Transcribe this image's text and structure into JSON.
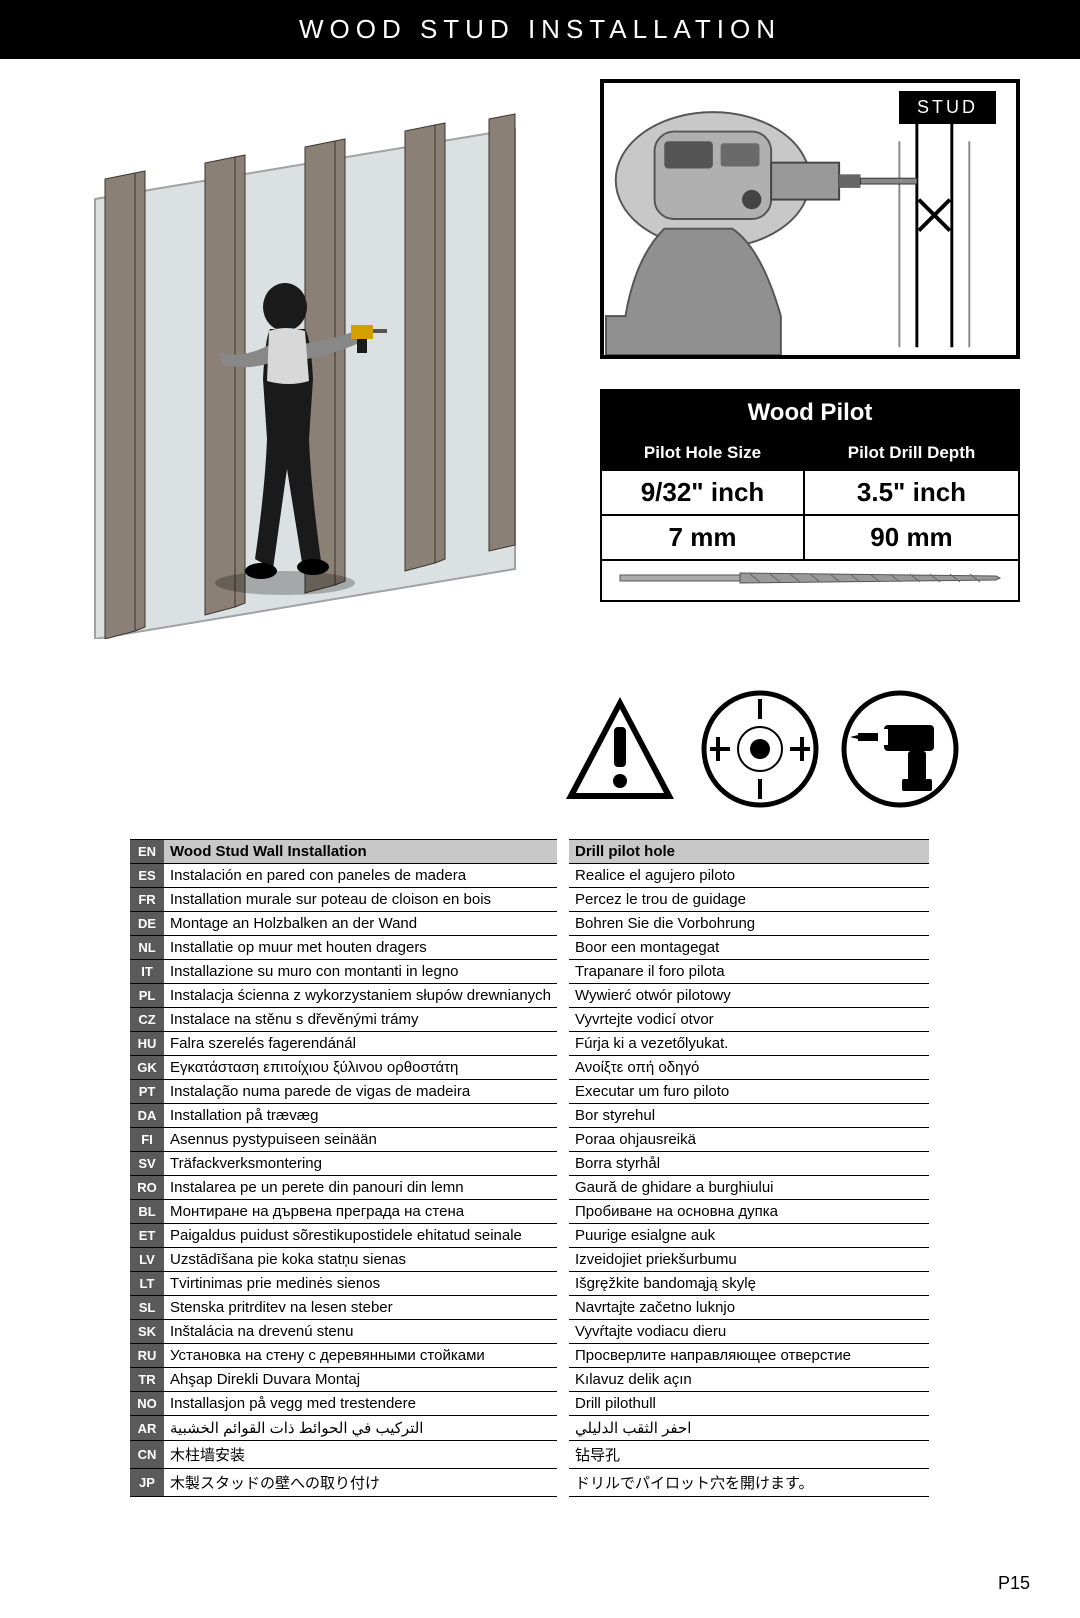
{
  "header_title": "WOOD STUD INSTALLATION",
  "stud_label": "STUD",
  "page_number": "P15",
  "pilot_table": {
    "title": "Wood Pilot",
    "col1_header": "Pilot Hole Size",
    "col2_header": "Pilot Drill Depth",
    "size_inch": "9/32\" inch",
    "depth_inch": "3.5\" inch",
    "size_mm": "7 mm",
    "depth_mm": "90 mm"
  },
  "langs": [
    {
      "code": "EN",
      "c1": "Wood Stud Wall Installation",
      "c2": "Drill pilot hole",
      "hdr": true
    },
    {
      "code": "ES",
      "c1": "Instalación en pared con paneles de madera",
      "c2": "Realice el agujero piloto"
    },
    {
      "code": "FR",
      "c1": "Installation murale sur poteau de cloison en bois",
      "c2": "Percez le trou de guidage"
    },
    {
      "code": "DE",
      "c1": "Montage an Holzbalken an der Wand",
      "c2": "Bohren Sie die Vorbohrung"
    },
    {
      "code": "NL",
      "c1": "Installatie op muur met houten dragers",
      "c2": "Boor een montagegat"
    },
    {
      "code": "IT",
      "c1": "Installazione su muro con montanti in legno",
      "c2": "Trapanare il foro pilota"
    },
    {
      "code": "PL",
      "c1": "Instalacja ścienna z wykorzystaniem słupów drewnianych",
      "c2": "Wywierć otwór pilotowy"
    },
    {
      "code": "CZ",
      "c1": "Instalace na stěnu s dřevěnými trámy",
      "c2": "Vyvrtejte vodicí otvor"
    },
    {
      "code": "HU",
      "c1": "Falra szerelés fagerendánál",
      "c2": "Fúrja ki a vezetőlyukat."
    },
    {
      "code": "GK",
      "c1": "Εγκατάσταση επιτοίχιου ξύλινου ορθοστάτη",
      "c2": "Ανοίξτε οπή οδηγό"
    },
    {
      "code": "PT",
      "c1": "Instalação numa parede de vigas de madeira",
      "c2": "Executar um furo piloto"
    },
    {
      "code": "DA",
      "c1": "Installation på trævæg",
      "c2": "Bor styrehul"
    },
    {
      "code": "FI",
      "c1": "Asennus pystypuiseen seinään",
      "c2": "Poraa ohjausreikä"
    },
    {
      "code": "SV",
      "c1": "Träfackverksmontering",
      "c2": "Borra styrhål"
    },
    {
      "code": "RO",
      "c1": "Instalarea pe un perete din panouri din lemn",
      "c2": "Gaură de ghidare a burghiului"
    },
    {
      "code": "BL",
      "c1": "Монтиране на дървена преграда на стена",
      "c2": "Пробиване на основна дупка"
    },
    {
      "code": "ET",
      "c1": "Paigaldus puidust sõrestikupostidele ehitatud seinale",
      "c2": "Puurige esialgne auk"
    },
    {
      "code": "LV",
      "c1": "Uzstādīšana pie koka statņu sienas",
      "c2": "Izveidojiet priekšurbumu"
    },
    {
      "code": "LT",
      "c1": "Tvirtinimas prie medinės sienos",
      "c2": "Išgręžkite bandomąją skylę"
    },
    {
      "code": "SL",
      "c1": "Stenska pritrditev na lesen steber",
      "c2": "Navrtajte začetno luknjo"
    },
    {
      "code": "SK",
      "c1": "Inštalácia na drevenú stenu",
      "c2": "Vyvŕtajte vodiacu dieru"
    },
    {
      "code": "RU",
      "c1": "Установка на стену с деревянными стойками",
      "c2": "Просверлите направляющее отверстие"
    },
    {
      "code": "TR",
      "c1": "Ahşap Direkli Duvara Montaj",
      "c2": "Kılavuz delik açın"
    },
    {
      "code": "NO",
      "c1": "Installasjon på vegg med trestendere",
      "c2": "Drill pilothull"
    },
    {
      "code": "AR",
      "c1": "التركيب في الحوائط ذات القوائم الخشبية",
      "c2": "احفر الثقب الدليلي"
    },
    {
      "code": "CN",
      "c1": "木柱墙安装",
      "c2": "钻导孔"
    },
    {
      "code": "JP",
      "c1": "木製スタッドの壁への取り付け",
      "c2": "ドリルでパイロット穴を開けます。"
    }
  ]
}
